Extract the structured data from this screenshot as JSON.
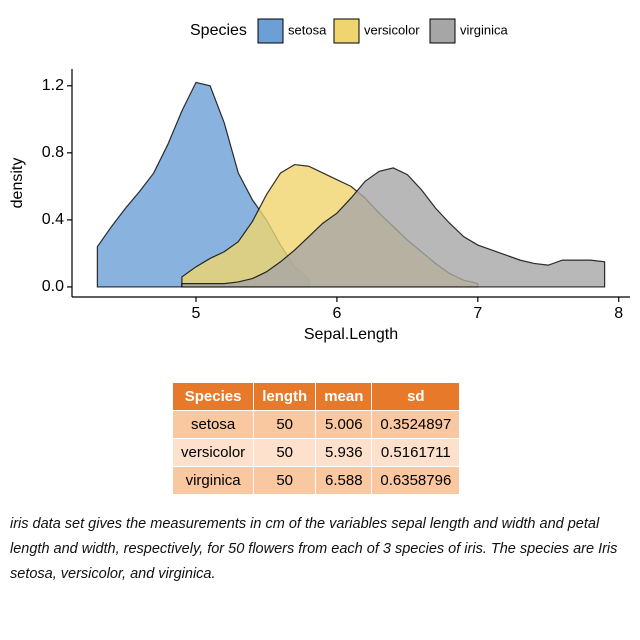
{
  "chart_data": {
    "type": "density",
    "x_label": "Sepal.Length",
    "y_label": "density",
    "legend_title": "Species",
    "legend": "top",
    "x": [
      4.3,
      4.4,
      4.5,
      4.6,
      4.7,
      4.8,
      4.9,
      5.0,
      5.1,
      5.2,
      5.3,
      5.4,
      5.5,
      5.6,
      5.7,
      5.8,
      5.9,
      6.0,
      6.1,
      6.2,
      6.3,
      6.4,
      6.5,
      6.6,
      6.7,
      6.8,
      6.9,
      7.0,
      7.1,
      7.2,
      7.3,
      7.4,
      7.5,
      7.6,
      7.7,
      7.8,
      7.9
    ],
    "series": [
      {
        "name": "setosa",
        "color": "#6c9fd6",
        "values": [
          0.24,
          0.36,
          0.47,
          0.57,
          0.68,
          0.85,
          1.05,
          1.22,
          1.2,
          0.98,
          0.68,
          0.52,
          0.4,
          0.25,
          0.12,
          0.05,
          null,
          null,
          null,
          null,
          null,
          null,
          null,
          null,
          null,
          null,
          null,
          null,
          null,
          null,
          null,
          null,
          null,
          null,
          null,
          null,
          null
        ]
      },
      {
        "name": "versicolor",
        "color": "#f0d56e",
        "values": [
          null,
          null,
          null,
          null,
          null,
          null,
          0.06,
          0.12,
          0.17,
          0.21,
          0.27,
          0.39,
          0.55,
          0.68,
          0.73,
          0.72,
          0.68,
          0.64,
          0.6,
          0.53,
          0.44,
          0.36,
          0.28,
          0.21,
          0.14,
          0.08,
          0.04,
          0.02,
          null,
          null,
          null,
          null,
          null,
          null,
          null,
          null,
          null
        ]
      },
      {
        "name": "virginica",
        "color": "#a6a6a6",
        "values": [
          null,
          null,
          null,
          null,
          null,
          null,
          0.02,
          0.02,
          0.02,
          0.02,
          0.03,
          0.05,
          0.09,
          0.15,
          0.22,
          0.3,
          0.38,
          0.44,
          0.53,
          0.63,
          0.69,
          0.71,
          0.67,
          0.58,
          0.47,
          0.38,
          0.3,
          0.25,
          0.22,
          0.19,
          0.16,
          0.14,
          0.13,
          0.16,
          0.16,
          0.16,
          0.15
        ]
      }
    ],
    "xlim": [
      4.12,
      8.08
    ],
    "xticks": [
      5,
      6,
      7,
      8
    ],
    "ylim": [
      -0.06,
      1.3
    ],
    "yticks": [
      {
        "value": 0,
        "label": "0.0"
      },
      {
        "value": 0.4,
        "label": "0.4"
      },
      {
        "value": 0.8,
        "label": "0.8"
      },
      {
        "value": 1.2,
        "label": "1.2"
      }
    ]
  },
  "table": {
    "header": [
      "Species",
      "length",
      "mean",
      "sd"
    ],
    "rows": [
      [
        "setosa",
        50,
        5.006,
        0.3524897
      ],
      [
        "versicolor",
        50,
        5.936,
        0.5161711
      ],
      [
        "virginica",
        50,
        6.588,
        0.6358796
      ]
    ]
  },
  "caption": "iris data set gives the measurements in cm of the variables sepal length and width and petal length and width, respectively, for 50 flowers from each of 3 species of iris. The species are Iris setosa, versicolor, and virginica."
}
